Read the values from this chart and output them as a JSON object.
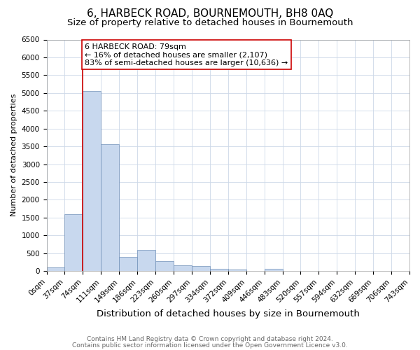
{
  "title": "6, HARBECK ROAD, BOURNEMOUTH, BH8 0AQ",
  "subtitle": "Size of property relative to detached houses in Bournemouth",
  "xlabel": "Distribution of detached houses by size in Bournemouth",
  "ylabel": "Number of detached properties",
  "bar_values": [
    100,
    1600,
    5050,
    3570,
    390,
    600,
    280,
    150,
    130,
    70,
    50,
    5,
    70,
    5,
    5,
    5,
    5,
    5,
    5,
    5
  ],
  "bar_labels": [
    "0sqm",
    "37sqm",
    "74sqm",
    "111sqm",
    "149sqm",
    "186sqm",
    "223sqm",
    "260sqm",
    "297sqm",
    "334sqm",
    "372sqm",
    "409sqm",
    "446sqm",
    "483sqm",
    "520sqm",
    "557sqm",
    "594sqm",
    "632sqm",
    "669sqm",
    "706sqm",
    "743sqm"
  ],
  "bar_color": "#c8d8ee",
  "bar_edge_color": "#7090b8",
  "ylim": [
    0,
    6500
  ],
  "yticks": [
    0,
    500,
    1000,
    1500,
    2000,
    2500,
    3000,
    3500,
    4000,
    4500,
    5000,
    5500,
    6000,
    6500
  ],
  "property_line_bar_index": 2,
  "property_line_color": "#cc0000",
  "annotation_text": "6 HARBECK ROAD: 79sqm\n← 16% of detached houses are smaller (2,107)\n83% of semi-detached houses are larger (10,636) →",
  "annotation_box_color": "#cc0000",
  "footnote1": "Contains HM Land Registry data © Crown copyright and database right 2024.",
  "footnote2": "Contains public sector information licensed under the Open Government Licence v3.0.",
  "title_fontsize": 11,
  "subtitle_fontsize": 9.5,
  "xlabel_fontsize": 9.5,
  "ylabel_fontsize": 8,
  "tick_fontsize": 7.5,
  "annotation_fontsize": 8,
  "footnote_fontsize": 6.5,
  "background_color": "#ffffff",
  "grid_color": "#ccd8e8"
}
